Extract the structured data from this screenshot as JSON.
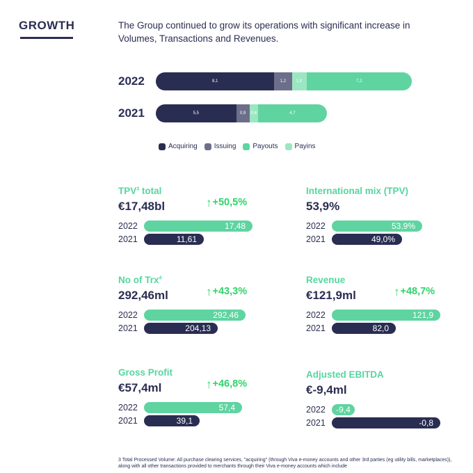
{
  "header": {
    "title": "GROWTH",
    "intro": "The Group continued to grow its operations with significant increase in Volumes, Transactions and Revenues."
  },
  "colors": {
    "acquiring": "#2a2d52",
    "issuing": "#6c6e8a",
    "payouts": "#5fd4a1",
    "payins": "#9ce6c1",
    "growth": "#2fd36a"
  },
  "chart_data": [
    {
      "type": "bar",
      "orientation": "horizontal",
      "stacked": true,
      "categories": [
        "2022",
        "2021"
      ],
      "series": [
        {
          "name": "Acquiring",
          "values": [
            8.1,
            5.5
          ],
          "labels": [
            "8,1",
            "5,5"
          ]
        },
        {
          "name": "Issuing",
          "values": [
            1.2,
            0.9
          ],
          "labels": [
            "1,2",
            "0,9"
          ]
        },
        {
          "name": "Payins",
          "values": [
            1.0,
            0.6
          ],
          "labels": [
            "1,0",
            "0,6"
          ]
        },
        {
          "name": "Payouts",
          "values": [
            7.2,
            4.7
          ],
          "labels": [
            "7,2",
            "4,7"
          ]
        }
      ],
      "legend": [
        "Acquiring",
        "Issuing",
        "Payouts",
        "Payins"
      ],
      "legend_position": "bottom"
    },
    {
      "type": "bar",
      "orientation": "horizontal",
      "title": "TPV",
      "title_sup": "3",
      "title_suffix": " total",
      "headline": "€17,48bl",
      "growth": "+50,5%",
      "categories": [
        "2022",
        "2021"
      ],
      "values": [
        17.48,
        11.61
      ],
      "labels": [
        "17,48",
        "11,61"
      ]
    },
    {
      "type": "bar",
      "orientation": "horizontal",
      "title": "International mix (TPV)",
      "headline": "53,9%",
      "categories": [
        "2022",
        "2021"
      ],
      "values": [
        53.9,
        49.0
      ],
      "labels": [
        "53,9%",
        "49,0%"
      ]
    },
    {
      "type": "bar",
      "orientation": "horizontal",
      "title": "No of Trx",
      "title_sup": "4",
      "headline": "292,46ml",
      "growth": "+43,3%",
      "categories": [
        "2022",
        "2021"
      ],
      "values": [
        292.46,
        204.13
      ],
      "labels": [
        "292,46",
        "204,13"
      ]
    },
    {
      "type": "bar",
      "orientation": "horizontal",
      "title": "Revenue",
      "headline": "€121,9ml",
      "growth": "+48,7%",
      "categories": [
        "2022",
        "2021"
      ],
      "values": [
        121.9,
        82.0
      ],
      "labels": [
        "121,9",
        "82,0"
      ]
    },
    {
      "type": "bar",
      "orientation": "horizontal",
      "title": "Gross Profit",
      "headline": "€57,4ml",
      "growth": "+46,8%",
      "categories": [
        "2022",
        "2021"
      ],
      "values": [
        57.4,
        39.1
      ],
      "labels": [
        "57,4",
        "39,1"
      ]
    },
    {
      "type": "bar",
      "orientation": "horizontal",
      "title": "Adjusted EBITDA",
      "headline": "€-9,4ml",
      "categories": [
        "2022",
        "2021"
      ],
      "values": [
        -9.4,
        -0.8
      ],
      "labels": [
        "-9,4",
        "-0,8"
      ]
    }
  ],
  "footnote": "3 Total Processed Volume: All purchase clearing services, \"acquiring\" (through Viva e-money accounts and other 3rd parties (eg utility bills, marketplaces)), along with all other transactions provided to merchants through their Viva e-money accounts which include"
}
